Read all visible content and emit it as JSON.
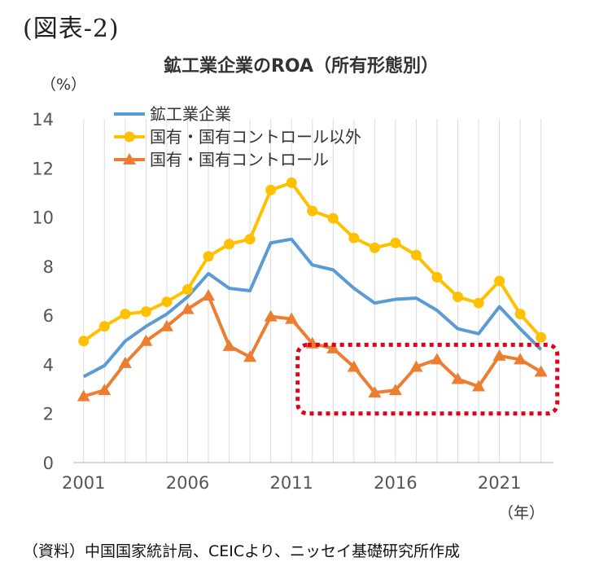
{
  "figure_label": "(図表-2)",
  "source_note": "（資料）中国国家統計局、CEICより、ニッセイ基礎研究所作成",
  "chart_data": {
    "type": "line",
    "title": "鉱工業企業のROA（所有形態別）",
    "ylabel": "（%）",
    "xlabel": "（年）",
    "ylim": [
      0,
      14
    ],
    "y_ticks": [
      "0",
      "2",
      "4",
      "6",
      "8",
      "10",
      "12",
      "14"
    ],
    "x_ticks": [
      "2001",
      "2006",
      "2011",
      "2016",
      "2021"
    ],
    "x": [
      2001,
      2002,
      2003,
      2004,
      2005,
      2006,
      2007,
      2008,
      2009,
      2010,
      2011,
      2012,
      2013,
      2014,
      2015,
      2016,
      2017,
      2018,
      2019,
      2020,
      2021,
      2022,
      2023
    ],
    "grid": "vertical",
    "legend_position": "top-left",
    "series": [
      {
        "name": "鉱工業企業",
        "color": "#5b9bd5",
        "marker": "none",
        "values": [
          3.5,
          3.95,
          4.95,
          5.55,
          6.05,
          6.75,
          7.7,
          7.1,
          7.0,
          8.95,
          9.1,
          8.05,
          7.85,
          7.1,
          6.5,
          6.65,
          6.7,
          6.2,
          5.45,
          5.25,
          6.35,
          5.45,
          4.6
        ]
      },
      {
        "name": "国有・国有コントロール以外",
        "color": "#ffc000",
        "marker": "circle",
        "values": [
          4.95,
          5.55,
          6.05,
          6.15,
          6.55,
          7.05,
          8.4,
          8.9,
          9.1,
          11.1,
          11.4,
          10.25,
          9.95,
          9.15,
          8.75,
          8.95,
          8.45,
          7.55,
          6.75,
          6.5,
          7.4,
          6.05,
          5.1
        ]
      },
      {
        "name": "国有・国有コントロール",
        "color": "#ed7d31",
        "marker": "triangle",
        "values": [
          2.7,
          2.95,
          4.05,
          4.95,
          5.55,
          6.25,
          6.8,
          4.75,
          4.3,
          5.95,
          5.85,
          4.85,
          4.65,
          3.9,
          2.85,
          2.95,
          3.9,
          4.2,
          3.4,
          3.1,
          4.35,
          4.2,
          3.7
        ]
      }
    ],
    "annotation": {
      "type": "dotted-rectangle",
      "color": "#e0001a",
      "x_range": [
        2012,
        2023
      ],
      "y_range": [
        2.0,
        4.8
      ]
    }
  }
}
